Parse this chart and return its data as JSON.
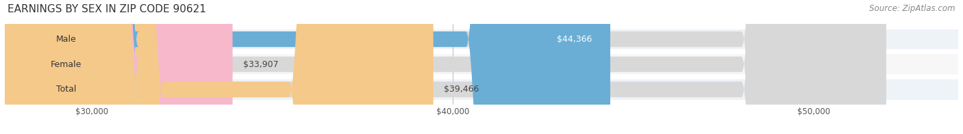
{
  "title": "EARNINGS BY SEX IN ZIP CODE 90621",
  "source": "Source: ZipAtlas.com",
  "categories": [
    "Male",
    "Female",
    "Total"
  ],
  "values": [
    44366,
    33907,
    39466
  ],
  "bar_colors": [
    "#6aaed6",
    "#f7b8cc",
    "#f5c98a"
  ],
  "row_bg_colors": [
    "#f0f4f8",
    "#fafafa",
    "#f0f4f8"
  ],
  "x_min": 28000,
  "x_max": 52000,
  "x_ticks": [
    30000,
    40000,
    50000
  ],
  "x_tick_labels": [
    "$30,000",
    "$40,000",
    "$50,000"
  ],
  "value_labels": [
    "$44,366",
    "$33,907",
    "$39,466"
  ],
  "value_label_colors": [
    "#ffffff",
    "#555555",
    "#555555"
  ],
  "title_fontsize": 11,
  "source_fontsize": 8.5,
  "bar_label_fontsize": 9,
  "value_label_fontsize": 9,
  "figsize": [
    14.06,
    1.96
  ],
  "dpi": 100
}
